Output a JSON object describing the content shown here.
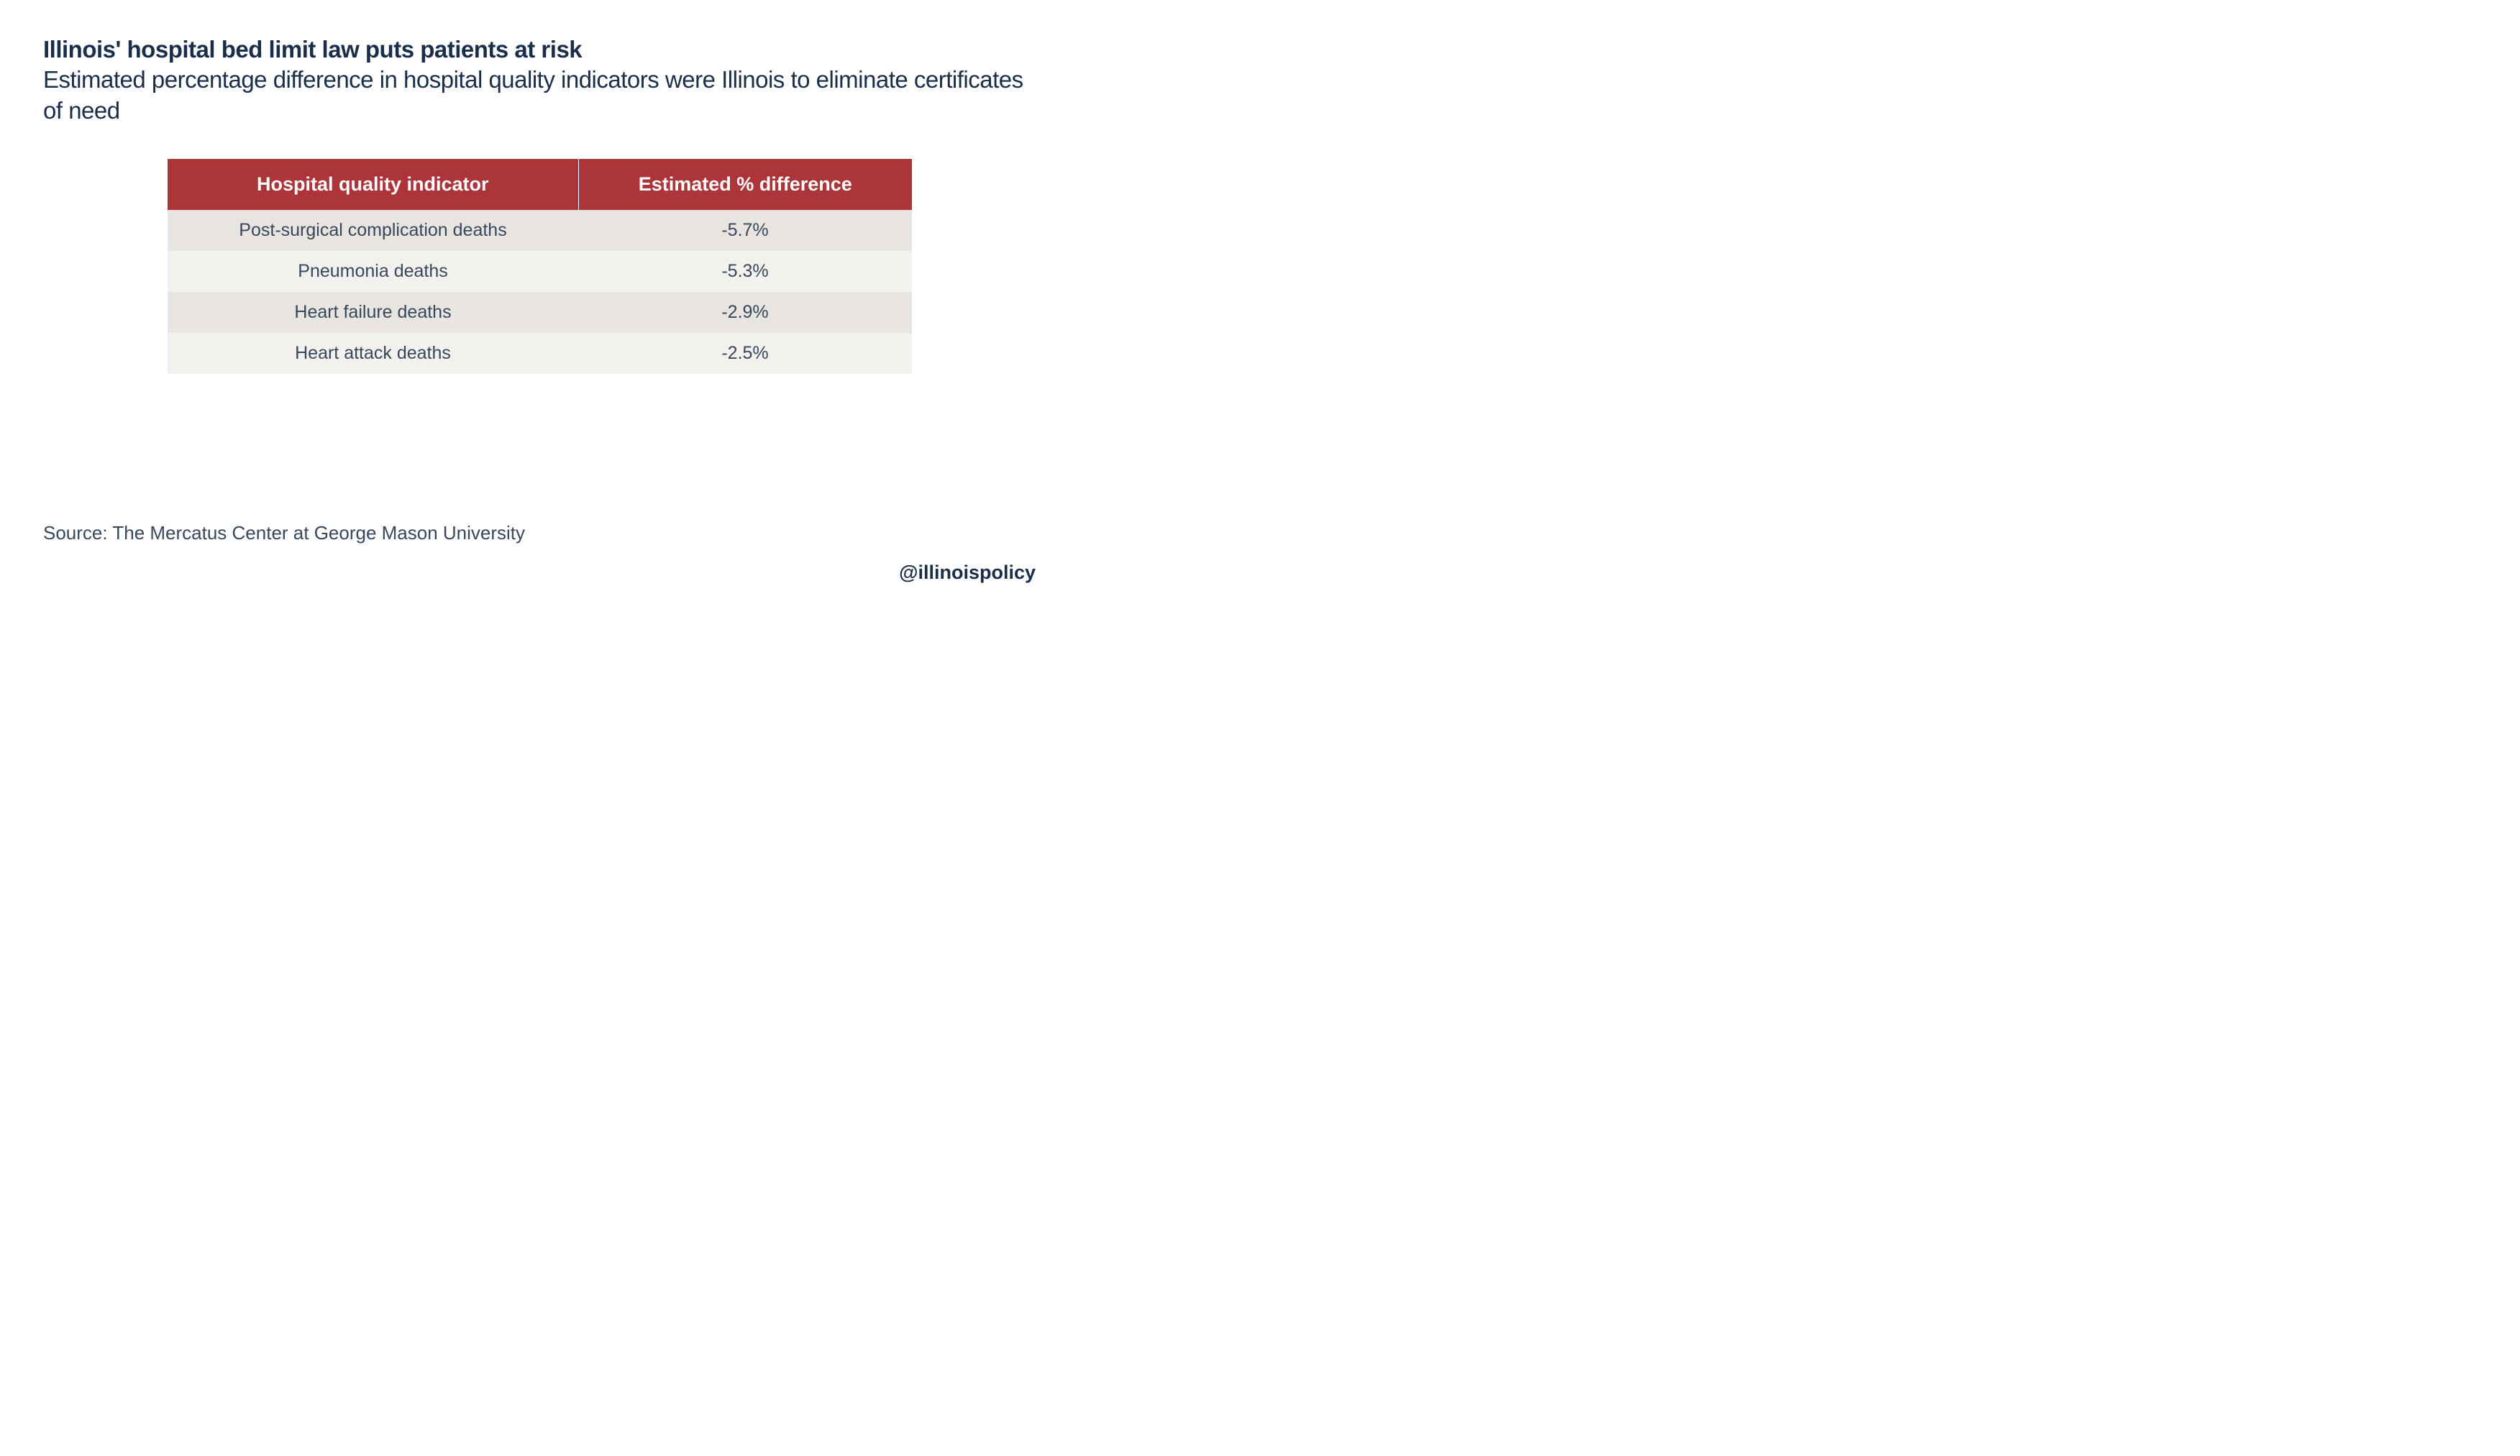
{
  "header": {
    "title": "Illinois' hospital bed limit law puts patients at risk",
    "subtitle": "Estimated percentage difference in hospital quality indicators were Illinois to eliminate certificates of need"
  },
  "table": {
    "type": "table",
    "header_bg_color": "#ac3539",
    "header_text_color": "#ffffff",
    "row_odd_bg": "#e8e5e1",
    "row_even_bg": "#f3f1ee",
    "cell_text_color": "#38475c",
    "columns": [
      "Hospital quality indicator",
      "Estimated % difference"
    ],
    "rows": [
      [
        "Post-surgical complication deaths",
        "-5.7%"
      ],
      [
        "Pneumonia deaths",
        "-5.3%"
      ],
      [
        "Heart failure deaths",
        "-2.9%"
      ],
      [
        "Heart attack deaths",
        "-2.5%"
      ]
    ],
    "header_fontsize": 27,
    "cell_fontsize": 25,
    "column_widths": [
      "50%",
      "50%"
    ]
  },
  "footer": {
    "source": "Source: The Mercatus Center at George Mason University",
    "handle": "@illinoispolicy"
  },
  "colors": {
    "background": "#ffffff",
    "title_color": "#1a2e4a",
    "subtitle_color": "#1a2e4a",
    "source_color": "#38475c"
  },
  "typography": {
    "title_fontsize": 33,
    "subtitle_fontsize": 33,
    "source_fontsize": 26,
    "handle_fontsize": 27
  }
}
